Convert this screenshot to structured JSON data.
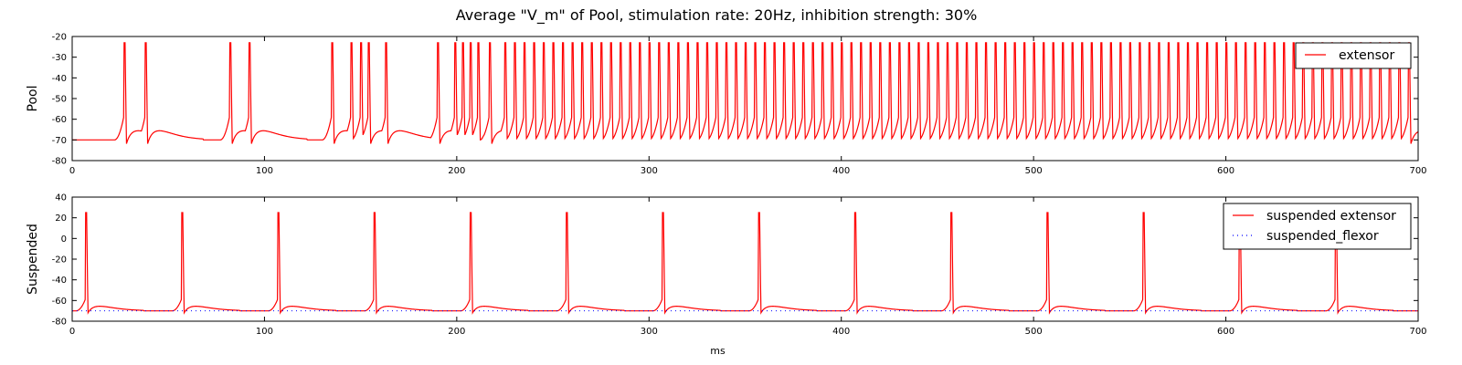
{
  "title": "Average \"V_m\" of Pool, stimulation rate: 20Hz, inhibition strength: 30%",
  "chart_data": [
    {
      "type": "line",
      "ylabel": "Pool",
      "xlabel": "",
      "xlim": [
        0,
        700
      ],
      "ylim": [
        -80,
        -20
      ],
      "xticks": [
        0,
        100,
        200,
        300,
        400,
        500,
        600,
        700
      ],
      "yticks": [
        -20,
        -30,
        -40,
        -50,
        -60,
        -70,
        -80
      ],
      "legend_position": "top-right",
      "series": [
        {
          "name": "extensor",
          "color": "#ff0000",
          "style": "solid",
          "baseline": -70,
          "spike_peak": -23,
          "spike_times_ms": [
            27,
            38,
            82,
            92,
            135,
            145,
            150,
            154,
            163,
            190,
            199,
            203,
            207,
            211,
            217,
            225,
            230,
            235,
            240,
            245,
            250,
            255,
            260,
            265,
            270,
            275,
            280,
            285,
            290,
            295,
            300,
            305,
            310,
            315,
            320,
            325,
            330,
            335,
            340,
            345,
            350,
            355,
            360,
            365,
            370,
            375,
            380,
            385,
            390,
            395,
            400,
            405,
            410,
            415,
            420,
            425,
            430,
            435,
            440,
            445,
            450,
            455,
            460,
            465,
            470,
            475,
            480,
            485,
            490,
            495,
            500,
            505,
            510,
            515,
            520,
            525,
            530,
            535,
            540,
            545,
            550,
            555,
            560,
            565,
            570,
            575,
            580,
            585,
            590,
            595,
            600,
            605,
            610,
            615,
            620,
            625,
            630,
            635,
            640,
            645,
            650,
            655,
            660,
            665,
            670,
            675,
            680,
            685,
            690,
            695
          ]
        }
      ]
    },
    {
      "type": "line",
      "ylabel": "Suspended",
      "xlabel": "ms",
      "xlim": [
        0,
        700
      ],
      "ylim": [
        -80,
        40
      ],
      "xticks": [
        0,
        100,
        200,
        300,
        400,
        500,
        600,
        700
      ],
      "yticks": [
        40,
        20,
        0,
        -20,
        -40,
        -60,
        -80
      ],
      "legend_position": "top-right",
      "series": [
        {
          "name": "suspended extensor",
          "color": "#ff0000",
          "style": "solid",
          "baseline": -70,
          "spike_peak": 25,
          "spike_times_ms": [
            7,
            57,
            107,
            157,
            207,
            257,
            307,
            357,
            407,
            457,
            507,
            557,
            607,
            657
          ]
        },
        {
          "name": "suspended_flexor",
          "color": "#0000ff",
          "style": "dotted",
          "values_mV": -70
        }
      ]
    }
  ]
}
